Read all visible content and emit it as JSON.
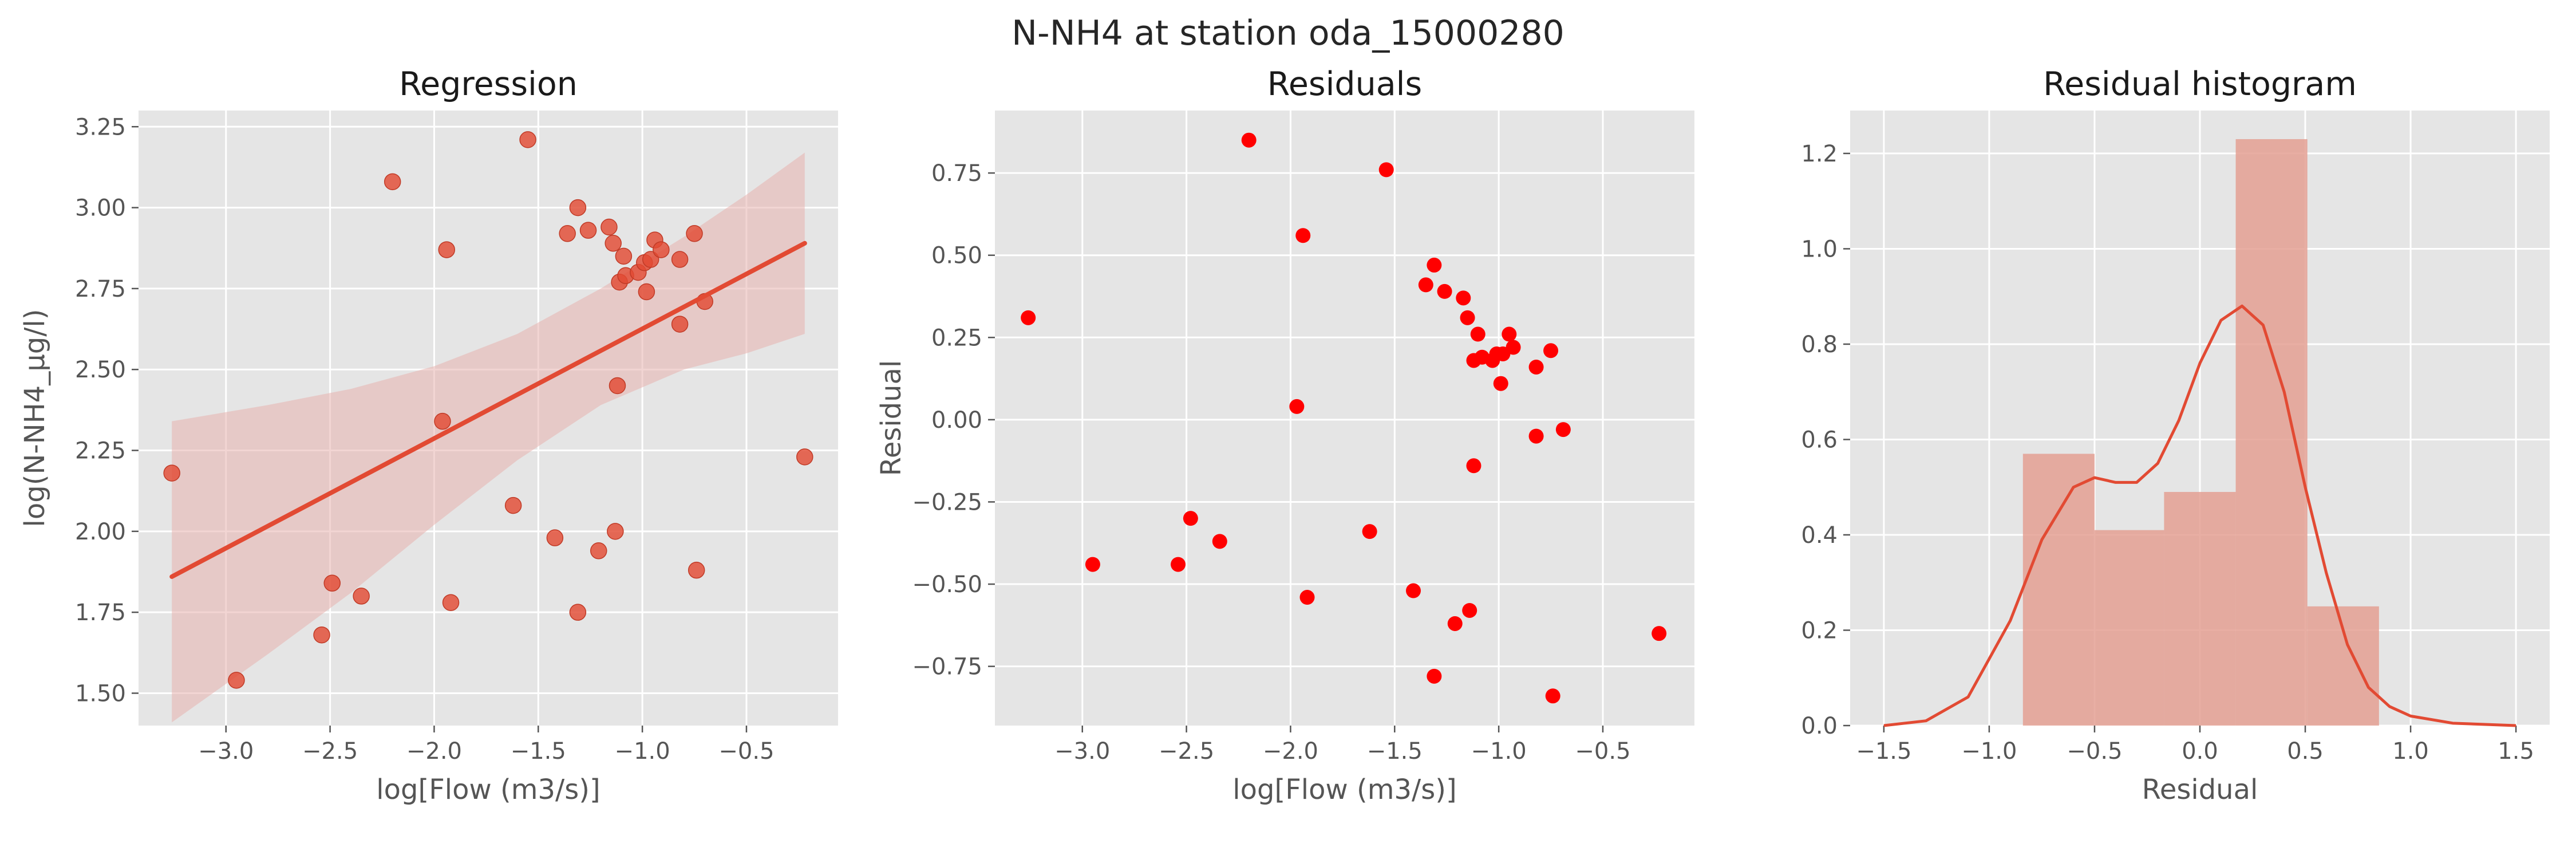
{
  "figure": {
    "title": "N-NH4 at station oda_15000280"
  },
  "colors": {
    "regression_points": "#e24a33",
    "regression_line": "#e24a33",
    "ci_band": "#e7b3ae",
    "residual_points": "#ff0000",
    "hist_bars": "#e4a093",
    "kde_line": "#e24a33",
    "panel_bg": "#e5e5e5",
    "grid": "#ffffff"
  },
  "chart_data": [
    {
      "type": "scatter",
      "title": "Regression",
      "xlabel": "log[Flow (m3/s)]",
      "ylabel": "log(N-NH4_µg/l)",
      "xlim": [
        -3.42,
        -0.06
      ],
      "ylim": [
        1.4,
        3.3
      ],
      "xticks": [
        -3.0,
        -2.5,
        -2.0,
        -1.5,
        -1.0,
        -0.5
      ],
      "xticklabels": [
        "−3.0",
        "−2.5",
        "−2.0",
        "−1.5",
        "−1.0",
        "−0.5"
      ],
      "yticks": [
        1.5,
        1.75,
        2.0,
        2.25,
        2.5,
        2.75,
        3.0,
        3.25
      ],
      "yticklabels": [
        "1.50",
        "1.75",
        "2.00",
        "2.25",
        "2.50",
        "2.75",
        "3.00",
        "3.25"
      ],
      "grid": true,
      "points": [
        {
          "x": -3.26,
          "y": 2.18
        },
        {
          "x": -2.95,
          "y": 1.54
        },
        {
          "x": -2.54,
          "y": 1.68
        },
        {
          "x": -2.49,
          "y": 1.84
        },
        {
          "x": -2.35,
          "y": 1.8
        },
        {
          "x": -2.2,
          "y": 3.08
        },
        {
          "x": -1.96,
          "y": 2.34
        },
        {
          "x": -1.94,
          "y": 2.87
        },
        {
          "x": -1.92,
          "y": 1.78
        },
        {
          "x": -1.62,
          "y": 2.08
        },
        {
          "x": -1.55,
          "y": 3.21
        },
        {
          "x": -1.42,
          "y": 1.98
        },
        {
          "x": -1.36,
          "y": 2.92
        },
        {
          "x": -1.31,
          "y": 3.0
        },
        {
          "x": -1.31,
          "y": 1.75
        },
        {
          "x": -1.26,
          "y": 2.93
        },
        {
          "x": -1.21,
          "y": 1.94
        },
        {
          "x": -1.16,
          "y": 2.94
        },
        {
          "x": -1.14,
          "y": 2.89
        },
        {
          "x": -1.13,
          "y": 2.0
        },
        {
          "x": -1.12,
          "y": 2.45
        },
        {
          "x": -1.11,
          "y": 2.77
        },
        {
          "x": -1.09,
          "y": 2.85
        },
        {
          "x": -1.08,
          "y": 2.79
        },
        {
          "x": -1.02,
          "y": 2.8
        },
        {
          "x": -0.99,
          "y": 2.83
        },
        {
          "x": -0.98,
          "y": 2.74
        },
        {
          "x": -0.96,
          "y": 2.84
        },
        {
          "x": -0.94,
          "y": 2.9
        },
        {
          "x": -0.91,
          "y": 2.87
        },
        {
          "x": -0.82,
          "y": 2.84
        },
        {
          "x": -0.82,
          "y": 2.64
        },
        {
          "x": -0.75,
          "y": 2.92
        },
        {
          "x": -0.74,
          "y": 1.88
        },
        {
          "x": -0.7,
          "y": 2.71
        },
        {
          "x": -0.22,
          "y": 2.23
        }
      ],
      "regression_line": [
        {
          "x": -3.26,
          "y": 1.86
        },
        {
          "x": -0.22,
          "y": 2.89
        }
      ],
      "ci_band": {
        "upper": [
          {
            "x": -3.26,
            "y": 2.34
          },
          {
            "x": -2.8,
            "y": 2.39
          },
          {
            "x": -2.4,
            "y": 2.44
          },
          {
            "x": -2.0,
            "y": 2.51
          },
          {
            "x": -1.6,
            "y": 2.61
          },
          {
            "x": -1.2,
            "y": 2.75
          },
          {
            "x": -0.8,
            "y": 2.91
          },
          {
            "x": -0.5,
            "y": 3.04
          },
          {
            "x": -0.22,
            "y": 3.17
          }
        ],
        "lower": [
          {
            "x": -3.26,
            "y": 1.41
          },
          {
            "x": -2.8,
            "y": 1.62
          },
          {
            "x": -2.4,
            "y": 1.81
          },
          {
            "x": -2.0,
            "y": 2.02
          },
          {
            "x": -1.6,
            "y": 2.22
          },
          {
            "x": -1.2,
            "y": 2.39
          },
          {
            "x": -0.8,
            "y": 2.5
          },
          {
            "x": -0.5,
            "y": 2.55
          },
          {
            "x": -0.22,
            "y": 2.61
          }
        ]
      }
    },
    {
      "type": "scatter",
      "title": "Residuals",
      "xlabel": "log[Flow (m3/s)]",
      "ylabel": "Residual",
      "xlim": [
        -3.42,
        -0.06
      ],
      "ylim": [
        -0.93,
        0.94
      ],
      "xticks": [
        -3.0,
        -2.5,
        -2.0,
        -1.5,
        -1.0,
        -0.5
      ],
      "xticklabels": [
        "−3.0",
        "−2.5",
        "−2.0",
        "−1.5",
        "−1.0",
        "−0.5"
      ],
      "yticks": [
        -0.75,
        -0.5,
        -0.25,
        0.0,
        0.25,
        0.5,
        0.75
      ],
      "yticklabels": [
        "−0.75",
        "−0.50",
        "−0.25",
        "0.00",
        "0.25",
        "0.50",
        "0.75"
      ],
      "grid": true,
      "points": [
        {
          "x": -3.26,
          "y": 0.31
        },
        {
          "x": -2.95,
          "y": -0.44
        },
        {
          "x": -2.54,
          "y": -0.44
        },
        {
          "x": -2.48,
          "y": -0.3
        },
        {
          "x": -2.34,
          "y": -0.37
        },
        {
          "x": -2.2,
          "y": 0.85
        },
        {
          "x": -1.97,
          "y": 0.04
        },
        {
          "x": -1.94,
          "y": 0.56
        },
        {
          "x": -1.92,
          "y": -0.54
        },
        {
          "x": -1.62,
          "y": -0.34
        },
        {
          "x": -1.54,
          "y": 0.76
        },
        {
          "x": -1.41,
          "y": -0.52
        },
        {
          "x": -1.35,
          "y": 0.41
        },
        {
          "x": -1.31,
          "y": 0.47
        },
        {
          "x": -1.31,
          "y": -0.78
        },
        {
          "x": -1.26,
          "y": 0.39
        },
        {
          "x": -1.21,
          "y": -0.62
        },
        {
          "x": -1.17,
          "y": 0.37
        },
        {
          "x": -1.15,
          "y": 0.31
        },
        {
          "x": -1.14,
          "y": -0.58
        },
        {
          "x": -1.12,
          "y": -0.14
        },
        {
          "x": -1.12,
          "y": 0.18
        },
        {
          "x": -1.1,
          "y": 0.26
        },
        {
          "x": -1.08,
          "y": 0.19
        },
        {
          "x": -1.03,
          "y": 0.18
        },
        {
          "x": -1.01,
          "y": 0.2
        },
        {
          "x": -0.99,
          "y": 0.11
        },
        {
          "x": -0.98,
          "y": 0.2
        },
        {
          "x": -0.95,
          "y": 0.26
        },
        {
          "x": -0.93,
          "y": 0.22
        },
        {
          "x": -0.82,
          "y": 0.16
        },
        {
          "x": -0.82,
          "y": -0.05
        },
        {
          "x": -0.75,
          "y": 0.21
        },
        {
          "x": -0.74,
          "y": -0.84
        },
        {
          "x": -0.69,
          "y": -0.03
        },
        {
          "x": -0.23,
          "y": -0.65
        }
      ]
    },
    {
      "type": "bar",
      "title": "Residual histogram",
      "xlabel": "Residual",
      "ylabel": "",
      "xlim": [
        -1.66,
        1.66
      ],
      "ylim": [
        0,
        1.29
      ],
      "xticks": [
        -1.5,
        -1.0,
        -0.5,
        0.0,
        0.5,
        1.0,
        1.5
      ],
      "xticklabels": [
        "−1.5",
        "−1.0",
        "−0.5",
        "0.0",
        "0.5",
        "1.0",
        "1.5"
      ],
      "yticks": [
        0.0,
        0.2,
        0.4,
        0.6,
        0.8,
        1.0,
        1.2
      ],
      "yticklabels": [
        "0.0",
        "0.2",
        "0.4",
        "0.6",
        "0.8",
        "1.0",
        "1.2"
      ],
      "grid": true,
      "bins": [
        {
          "x0": -0.84,
          "x1": -0.5,
          "value": 0.57
        },
        {
          "x0": -0.5,
          "x1": -0.17,
          "value": 0.41
        },
        {
          "x0": -0.17,
          "x1": 0.17,
          "value": 0.49
        },
        {
          "x0": 0.17,
          "x1": 0.51,
          "value": 1.23
        },
        {
          "x0": 0.51,
          "x1": 0.85,
          "value": 0.25
        }
      ],
      "kde": [
        {
          "x": -1.5,
          "y": 0.0
        },
        {
          "x": -1.3,
          "y": 0.01
        },
        {
          "x": -1.1,
          "y": 0.06
        },
        {
          "x": -0.9,
          "y": 0.22
        },
        {
          "x": -0.75,
          "y": 0.39
        },
        {
          "x": -0.6,
          "y": 0.5
        },
        {
          "x": -0.5,
          "y": 0.52
        },
        {
          "x": -0.4,
          "y": 0.51
        },
        {
          "x": -0.3,
          "y": 0.51
        },
        {
          "x": -0.2,
          "y": 0.55
        },
        {
          "x": -0.1,
          "y": 0.64
        },
        {
          "x": 0.0,
          "y": 0.76
        },
        {
          "x": 0.1,
          "y": 0.85
        },
        {
          "x": 0.2,
          "y": 0.88
        },
        {
          "x": 0.3,
          "y": 0.84
        },
        {
          "x": 0.4,
          "y": 0.7
        },
        {
          "x": 0.5,
          "y": 0.5
        },
        {
          "x": 0.6,
          "y": 0.32
        },
        {
          "x": 0.7,
          "y": 0.17
        },
        {
          "x": 0.8,
          "y": 0.08
        },
        {
          "x": 0.9,
          "y": 0.04
        },
        {
          "x": 1.0,
          "y": 0.02
        },
        {
          "x": 1.2,
          "y": 0.005
        },
        {
          "x": 1.5,
          "y": 0.0
        }
      ]
    }
  ]
}
